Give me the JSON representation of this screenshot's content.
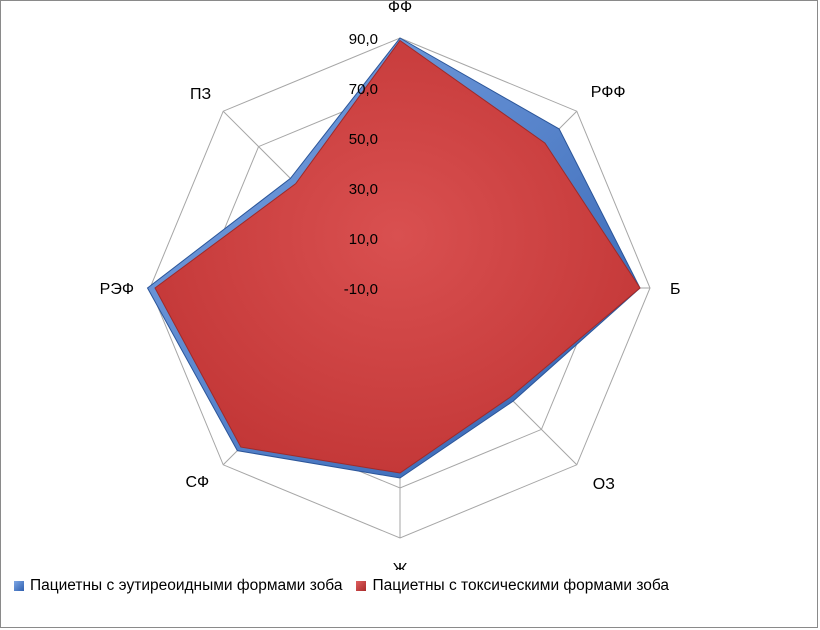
{
  "chart_data": {
    "type": "radar",
    "title": "",
    "categories": [
      "ФФ",
      "РФФ",
      "Б",
      "ОЗ",
      "Ж",
      "СФ",
      "РЭФ",
      "ПЗ"
    ],
    "series": [
      {
        "name": "Пациетны с эутиреоидными формами зоба",
        "values": [
          90.0,
          80.0,
          86.0,
          54.0,
          66.0,
          82.0,
          91.0,
          52.0
        ],
        "color": "#4A7EC8"
      },
      {
        "name": "Пациетны с токсическими формами зоба",
        "values": [
          89.0,
          72.0,
          86.0,
          52.0,
          64.0,
          80.0,
          88.0,
          49.0
        ],
        "color": "#C83A3A"
      }
    ],
    "r_axis": {
      "min": -10,
      "max": 90,
      "ticks": [
        "90,0",
        "70,0",
        "50,0",
        "30,0",
        "10,0",
        "-10,0"
      ]
    },
    "grid": true,
    "legend_position": "bottom"
  }
}
